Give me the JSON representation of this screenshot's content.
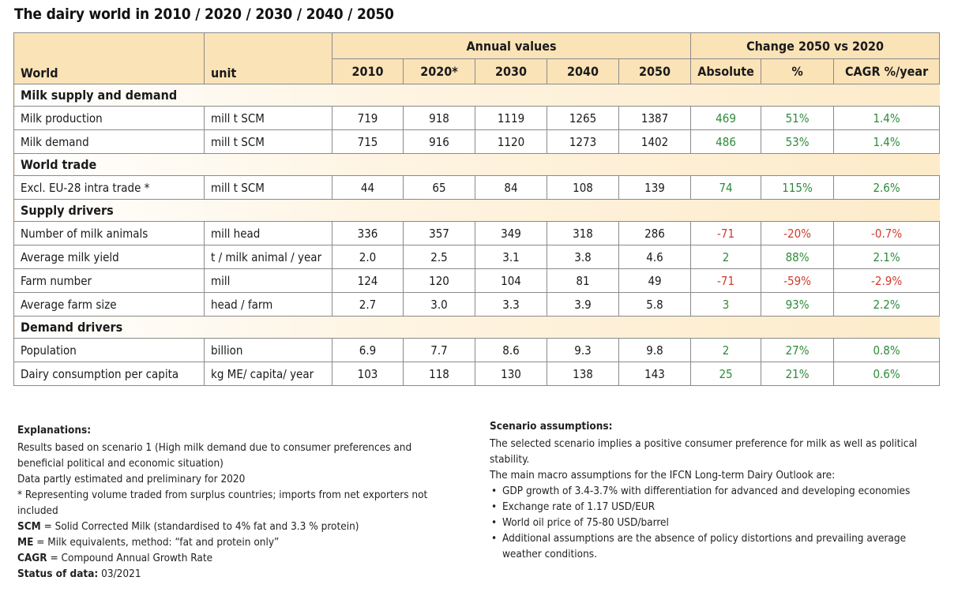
{
  "title": "The dairy world in 2010 / 2020 / 2030 / 2040 / 2050",
  "table": {
    "header": {
      "group_annual": "Annual values",
      "group_change": "Change 2050 vs 2020",
      "col_world": "World",
      "col_unit": "unit",
      "years": [
        "2010",
        "2020*",
        "2030",
        "2040",
        "2050"
      ],
      "change_cols": [
        "Absolute",
        "%",
        "CAGR %/year"
      ]
    },
    "sections": [
      {
        "title": "Milk supply and demand",
        "rows": [
          {
            "label": "Milk production",
            "unit": "mill t SCM",
            "values": [
              "719",
              "918",
              "1119",
              "1265",
              "1387"
            ],
            "absolute": "469",
            "pct": "51%",
            "cagr": "1.4%",
            "sign": "pos"
          },
          {
            "label": "Milk demand",
            "unit": "mill t SCM",
            "values": [
              "715",
              "916",
              "1120",
              "1273",
              "1402"
            ],
            "absolute": "486",
            "pct": "53%",
            "cagr": "1.4%",
            "sign": "pos"
          }
        ]
      },
      {
        "title": "World trade",
        "rows": [
          {
            "label": "Excl. EU-28 intra trade *",
            "unit": "mill t SCM",
            "values": [
              "44",
              "65",
              "84",
              "108",
              "139"
            ],
            "absolute": "74",
            "pct": "115%",
            "cagr": "2.6%",
            "sign": "pos"
          }
        ]
      },
      {
        "title": "Supply drivers",
        "rows": [
          {
            "label": "Number of milk animals",
            "unit": "mill head",
            "values": [
              "336",
              "357",
              "349",
              "318",
              "286"
            ],
            "absolute": "-71",
            "pct": "-20%",
            "cagr": "-0.7%",
            "sign": "neg"
          },
          {
            "label": "Average milk yield",
            "unit": "t / milk animal / year",
            "values": [
              "2.0",
              "2.5",
              "3.1",
              "3.8",
              "4.6"
            ],
            "absolute": "2",
            "pct": "88%",
            "cagr": "2.1%",
            "sign": "pos"
          },
          {
            "label": "Farm number",
            "unit": "mill",
            "values": [
              "124",
              "120",
              "104",
              "81",
              "49"
            ],
            "absolute": "-71",
            "pct": "-59%",
            "cagr": "-2.9%",
            "sign": "neg"
          },
          {
            "label": "Average farm size",
            "unit": "head / farm",
            "values": [
              "2.7",
              "3.0",
              "3.3",
              "3.9",
              "5.8"
            ],
            "absolute": "3",
            "pct": "93%",
            "cagr": "2.2%",
            "sign": "pos"
          }
        ]
      },
      {
        "title": "Demand drivers",
        "rows": [
          {
            "label": "Population",
            "unit": "billion",
            "values": [
              "6.9",
              "7.7",
              "8.6",
              "9.3",
              "9.8"
            ],
            "absolute": "2",
            "pct": "27%",
            "cagr": "0.8%",
            "sign": "pos"
          },
          {
            "label": "Dairy consumption per capita",
            "unit": "kg ME/ capita/ year",
            "values": [
              "103",
              "118",
              "130",
              "138",
              "143"
            ],
            "absolute": "25",
            "pct": "21%",
            "cagr": "0.6%",
            "sign": "pos"
          }
        ]
      }
    ]
  },
  "explanations": {
    "heading": "Explanations:",
    "line1": "Results based on scenario 1 (High milk demand due to consumer preferences and beneficial political and economic situation)",
    "line2": "Data partly estimated and preliminary for 2020",
    "line3": "* Representing volume traded from surplus countries; imports from net exporters not included",
    "scm_term": "SCM",
    "scm_def": " = Solid Corrected Milk (standardised to 4% fat and 3.3 % protein)",
    "me_term": "ME",
    "me_def": " = Milk equivalents, method: “fat and protein only”",
    "cagr_term": "CAGR",
    "cagr_def": " = Compound Annual Growth Rate",
    "status_term": "Status of data:",
    "status_value": " 03/2021"
  },
  "scenario": {
    "heading": "Scenario assumptions:",
    "intro": "The selected scenario implies a positive consumer preference for milk as well as political stability.",
    "macro_intro": "The main macro assumptions for the IFCN Long-term Dairy Outlook are:",
    "bullets": [
      "GDP growth of 3.4-3.7% with differentiation for advanced and developing economies",
      "Exchange rate of 1.17 USD/EUR",
      "World oil price of 75-80 USD/barrel",
      "Additional assumptions are the absence of policy distortions and prevailing average weather conditions."
    ]
  }
}
